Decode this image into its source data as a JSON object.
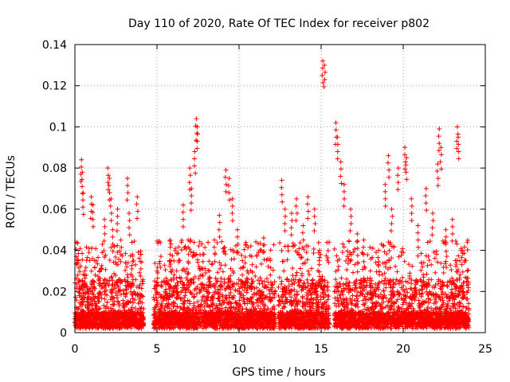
{
  "chart_data": {
    "type": "scatter",
    "title": "Day 110 of 2020, Rate Of TEC Index for receiver p802",
    "xlabel": "GPS time / hours",
    "ylabel": "ROTI / TECUs",
    "xlim": [
      0,
      25
    ],
    "ylim": [
      0,
      0.14
    ],
    "x_ticks": [
      0,
      5,
      10,
      15,
      20,
      25
    ],
    "x_tick_labels": [
      "0",
      "5",
      "10",
      "15",
      "20",
      "25"
    ],
    "y_ticks": [
      0,
      0.02,
      0.04,
      0.06,
      0.08,
      0.1,
      0.12,
      0.14
    ],
    "y_tick_labels": [
      "0",
      "0.02",
      "0.04",
      "0.06",
      "0.08",
      "0.1",
      "0.12",
      "0.14"
    ],
    "grid": true,
    "marker": "plus",
    "color": "#ff0000",
    "data_spans_hours": [
      [
        0,
        4.2
      ],
      [
        4.8,
        12.2
      ],
      [
        12.4,
        15.5
      ],
      [
        15.8,
        24.0
      ]
    ],
    "series": [
      {
        "points": [
          [
            0.1,
            0.044
          ],
          [
            0.2,
            0.035
          ],
          [
            0.3,
            0.025
          ],
          [
            0.4,
            0.084
          ],
          [
            0.45,
            0.078
          ],
          [
            0.5,
            0.068
          ],
          [
            0.6,
            0.03
          ],
          [
            0.8,
            0.02
          ],
          [
            1.0,
            0.066
          ],
          [
            1.1,
            0.062
          ],
          [
            1.2,
            0.035
          ],
          [
            1.5,
            0.03
          ],
          [
            1.8,
            0.055
          ],
          [
            2.0,
            0.08
          ],
          [
            2.1,
            0.075
          ],
          [
            2.2,
            0.065
          ],
          [
            2.3,
            0.05
          ],
          [
            2.6,
            0.06
          ],
          [
            2.8,
            0.045
          ],
          [
            3.2,
            0.075
          ],
          [
            3.3,
            0.058
          ],
          [
            3.5,
            0.038
          ],
          [
            3.8,
            0.066
          ],
          [
            4.0,
            0.038
          ],
          [
            4.1,
            0.025
          ],
          [
            5.0,
            0.03
          ],
          [
            5.5,
            0.02
          ],
          [
            5.8,
            0.045
          ],
          [
            6.2,
            0.03
          ],
          [
            6.6,
            0.062
          ],
          [
            6.9,
            0.045
          ],
          [
            7.0,
            0.08
          ],
          [
            7.1,
            0.07
          ],
          [
            7.3,
            0.088
          ],
          [
            7.4,
            0.104
          ],
          [
            7.45,
            0.1
          ],
          [
            7.8,
            0.038
          ],
          [
            8.2,
            0.03
          ],
          [
            8.5,
            0.045
          ],
          [
            8.8,
            0.057
          ],
          [
            9.2,
            0.079
          ],
          [
            9.4,
            0.075
          ],
          [
            9.6,
            0.065
          ],
          [
            9.9,
            0.05
          ],
          [
            10.2,
            0.035
          ],
          [
            10.5,
            0.03
          ],
          [
            10.8,
            0.033
          ],
          [
            11.2,
            0.02
          ],
          [
            11.5,
            0.046
          ],
          [
            11.9,
            0.035
          ],
          [
            12.6,
            0.074
          ],
          [
            12.8,
            0.06
          ],
          [
            13.2,
            0.058
          ],
          [
            13.5,
            0.065
          ],
          [
            13.9,
            0.052
          ],
          [
            14.2,
            0.066
          ],
          [
            14.6,
            0.06
          ],
          [
            14.9,
            0.04
          ],
          [
            15.1,
            0.132
          ],
          [
            15.2,
            0.13
          ],
          [
            15.9,
            0.102
          ],
          [
            16.0,
            0.095
          ],
          [
            16.2,
            0.083
          ],
          [
            16.4,
            0.072
          ],
          [
            16.8,
            0.06
          ],
          [
            17.2,
            0.048
          ],
          [
            17.6,
            0.045
          ],
          [
            18.0,
            0.03
          ],
          [
            18.5,
            0.04
          ],
          [
            18.9,
            0.072
          ],
          [
            19.1,
            0.086
          ],
          [
            19.3,
            0.06
          ],
          [
            19.7,
            0.08
          ],
          [
            20.1,
            0.09
          ],
          [
            20.2,
            0.085
          ],
          [
            20.5,
            0.065
          ],
          [
            20.9,
            0.052
          ],
          [
            21.4,
            0.07
          ],
          [
            21.8,
            0.058
          ],
          [
            22.1,
            0.082
          ],
          [
            22.2,
            0.099
          ],
          [
            22.3,
            0.09
          ],
          [
            22.6,
            0.05
          ],
          [
            23.0,
            0.055
          ],
          [
            23.3,
            0.1
          ],
          [
            23.35,
            0.095
          ],
          [
            23.6,
            0.04
          ],
          [
            23.9,
            0.03
          ]
        ]
      }
    ]
  }
}
